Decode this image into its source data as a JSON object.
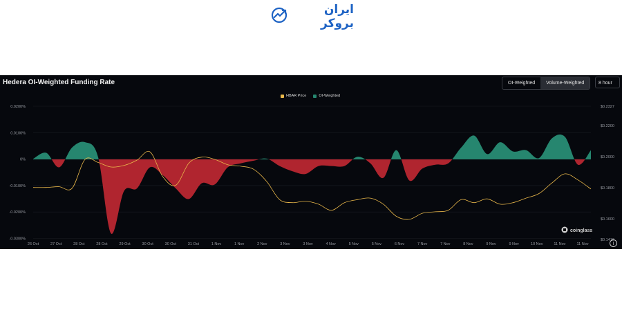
{
  "brand": {
    "name": "ایران بروکر",
    "color": "#1e63c4",
    "icon": "chart-trend-icon"
  },
  "header": {
    "title": "Hedera OI-Weighted Funding Rate",
    "toggle": [
      "OI-Weighted",
      "Volume-Weighted"
    ],
    "active_toggle": "Volume-Weighted",
    "period": "8 hour"
  },
  "watermark": "coinglass",
  "colors": {
    "positive": "#26866f",
    "negative": "#b0252f",
    "price_line": "#e9b84a",
    "background": "#06080d"
  },
  "chart_data": {
    "type": "area",
    "title": "Hedera OI-Weighted Funding Rate",
    "legend": [
      {
        "name": "HBAR Price",
        "color": "#e9b84a"
      },
      {
        "name": "OI-Weighted",
        "color": "#26866f"
      }
    ],
    "legend_position": "top-center",
    "grid": true,
    "x_ticks": [
      "26 Oct",
      "27 Oct",
      "28 Oct",
      "28 Oct",
      "29 Oct",
      "30 Oct",
      "30 Oct",
      "31 Oct",
      "1 Nov",
      "1 Nov",
      "2 Nov",
      "3 Nov",
      "3 Nov",
      "4 Nov",
      "5 Nov",
      "5 Nov",
      "6 Nov",
      "7 Nov",
      "7 Nov",
      "8 Nov",
      "9 Nov",
      "9 Nov",
      "10 Nov",
      "11 Nov",
      "11 Nov"
    ],
    "y_left_ticks": [
      "0.0200%",
      "0.0100%",
      "0%",
      "-0.0100%",
      "-0.0200%",
      "-0.0300%"
    ],
    "y_left_range": [
      -0.03,
      0.02
    ],
    "y_right_ticks": [
      "$0.2327",
      "$0.2200",
      "$0.2000",
      "$0.1800",
      "$0.1600",
      "$0.1416"
    ],
    "series": [
      {
        "name": "OI-Weighted",
        "unit": "%",
        "values": [
          0.0002,
          0.0025,
          -0.003,
          0.0045,
          0.0065,
          0.001,
          -0.028,
          -0.012,
          -0.011,
          -0.003,
          -0.006,
          -0.011,
          -0.015,
          -0.009,
          -0.0095,
          -0.003,
          -0.0015,
          -0.0005,
          0.0003,
          -0.0025,
          -0.0045,
          -0.0055,
          -0.0025,
          -0.0025,
          -0.0025,
          0.001,
          -0.0015,
          -0.007,
          0.0035,
          -0.008,
          -0.0035,
          -0.002,
          -0.0015,
          0.0045,
          0.009,
          0.002,
          0.0065,
          0.003,
          0.0035,
          0.0005,
          0.008,
          0.0085,
          -0.002,
          0.0035
        ]
      },
      {
        "name": "HBAR Price",
        "unit": "$",
        "values": [
          0.1815,
          0.1815,
          0.182,
          0.181,
          0.2,
          0.198,
          0.195,
          0.196,
          0.1995,
          0.205,
          0.1885,
          0.183,
          0.1975,
          0.2015,
          0.2,
          0.1965,
          0.1955,
          0.1935,
          0.1855,
          0.1735,
          0.1715,
          0.1725,
          0.1705,
          0.1665,
          0.1715,
          0.1735,
          0.1745,
          0.1705,
          0.1625,
          0.1605,
          0.1645,
          0.1655,
          0.1665,
          0.1735,
          0.1715,
          0.174,
          0.1705,
          0.1715,
          0.1745,
          0.1775,
          0.1845,
          0.1905,
          0.1865,
          0.1805
        ]
      }
    ]
  }
}
